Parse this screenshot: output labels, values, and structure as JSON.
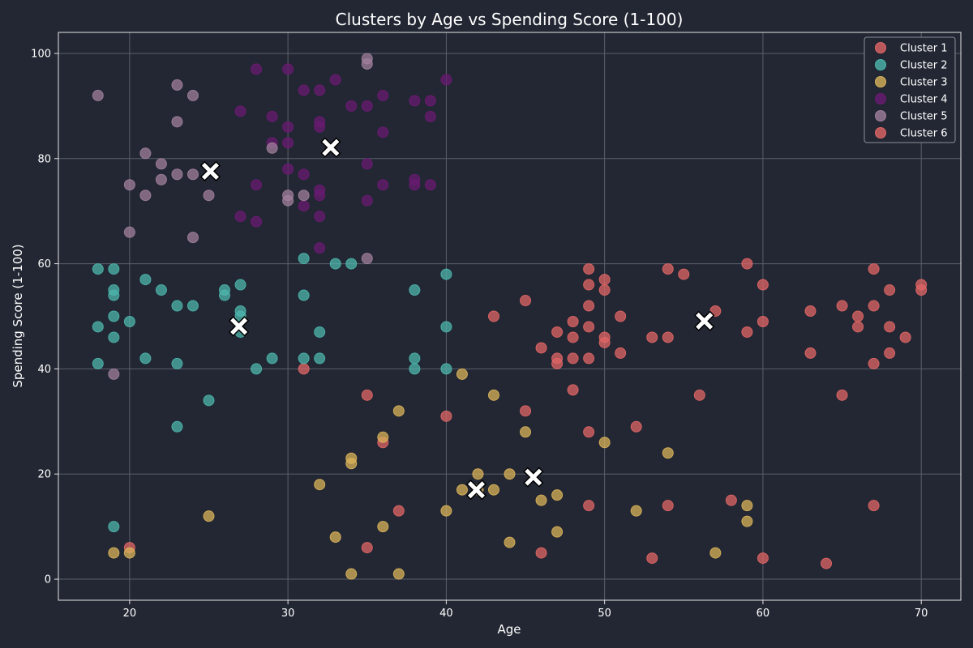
{
  "chart_data": {
    "type": "scatter",
    "title": "Clusters by Age vs Spending Score (1-100)",
    "xlabel": "Age",
    "ylabel": "Spending Score (1-100)",
    "xlim": [
      15.5,
      72.5
    ],
    "ylim": [
      -4,
      104
    ],
    "xticks": [
      20,
      30,
      40,
      50,
      60,
      70
    ],
    "yticks": [
      0,
      20,
      40,
      60,
      80,
      100
    ],
    "grid": true,
    "legend_position": "top-right",
    "series": [
      {
        "name": "Cluster 1",
        "color": "#e06666",
        "points": [
          [
            43,
            50
          ],
          [
            45,
            53
          ],
          [
            45,
            32
          ],
          [
            46,
            44
          ],
          [
            47,
            47
          ],
          [
            47,
            42
          ],
          [
            47,
            41
          ],
          [
            48,
            49
          ],
          [
            48,
            46
          ],
          [
            48,
            42
          ],
          [
            49,
            59
          ],
          [
            49,
            56
          ],
          [
            49,
            52
          ],
          [
            49,
            48
          ],
          [
            49,
            42
          ],
          [
            49,
            28
          ],
          [
            50,
            57
          ],
          [
            50,
            55
          ],
          [
            50,
            46
          ],
          [
            50,
            45
          ],
          [
            51,
            50
          ],
          [
            51,
            43
          ],
          [
            52,
            29
          ],
          [
            53,
            46
          ],
          [
            54,
            59
          ],
          [
            54,
            46
          ],
          [
            55,
            58
          ],
          [
            56,
            35
          ],
          [
            57,
            51
          ],
          [
            59,
            60
          ],
          [
            59,
            47
          ],
          [
            60,
            56
          ],
          [
            60,
            49
          ],
          [
            63,
            51
          ],
          [
            63,
            43
          ],
          [
            65,
            52
          ],
          [
            65,
            35
          ],
          [
            66,
            50
          ],
          [
            66,
            48
          ],
          [
            67,
            59
          ],
          [
            67,
            52
          ],
          [
            67,
            41
          ],
          [
            68,
            55
          ],
          [
            68,
            48
          ],
          [
            68,
            43
          ],
          [
            69,
            46
          ],
          [
            70,
            56
          ],
          [
            70,
            55
          ],
          [
            31,
            40
          ],
          [
            40,
            31
          ],
          [
            36,
            26
          ],
          [
            35,
            35
          ],
          [
            48,
            36
          ],
          [
            37,
            13
          ],
          [
            35,
            6
          ],
          [
            20,
            6
          ],
          [
            46,
            5
          ],
          [
            49,
            14
          ],
          [
            53,
            4
          ],
          [
            54,
            14
          ],
          [
            58,
            15
          ],
          [
            60,
            4
          ],
          [
            64,
            3
          ],
          [
            67,
            14
          ]
        ]
      },
      {
        "name": "Cluster 2",
        "color": "#4db6ac",
        "points": [
          [
            18,
            59
          ],
          [
            19,
            59
          ],
          [
            18,
            48
          ],
          [
            18,
            41
          ],
          [
            19,
            55
          ],
          [
            19,
            54
          ],
          [
            19,
            50
          ],
          [
            19,
            46
          ],
          [
            19,
            10
          ],
          [
            20,
            49
          ],
          [
            21,
            57
          ],
          [
            21,
            42
          ],
          [
            22,
            55
          ],
          [
            23,
            52
          ],
          [
            23,
            41
          ],
          [
            23,
            29
          ],
          [
            24,
            52
          ],
          [
            25,
            34
          ],
          [
            26,
            55
          ],
          [
            26,
            54
          ],
          [
            27,
            56
          ],
          [
            27,
            51
          ],
          [
            27,
            50
          ],
          [
            27,
            47
          ],
          [
            28,
            40
          ],
          [
            29,
            42
          ],
          [
            31,
            61
          ],
          [
            31,
            54
          ],
          [
            31,
            42
          ],
          [
            32,
            47
          ],
          [
            32,
            42
          ],
          [
            33,
            60
          ],
          [
            34,
            60
          ],
          [
            38,
            55
          ],
          [
            38,
            42
          ],
          [
            38,
            40
          ],
          [
            40,
            58
          ],
          [
            40,
            48
          ],
          [
            40,
            40
          ]
        ]
      },
      {
        "name": "Cluster 3",
        "color": "#d9b35a",
        "points": [
          [
            19,
            5
          ],
          [
            20,
            5
          ],
          [
            25,
            12
          ],
          [
            32,
            18
          ],
          [
            33,
            8
          ],
          [
            34,
            23
          ],
          [
            34,
            22
          ],
          [
            34,
            1
          ],
          [
            36,
            27
          ],
          [
            36,
            10
          ],
          [
            37,
            32
          ],
          [
            37,
            1
          ],
          [
            40,
            13
          ],
          [
            41,
            39
          ],
          [
            41,
            17
          ],
          [
            42,
            20
          ],
          [
            42,
            17
          ],
          [
            43,
            35
          ],
          [
            43,
            17
          ],
          [
            44,
            20
          ],
          [
            44,
            7
          ],
          [
            45,
            28
          ],
          [
            46,
            15
          ],
          [
            47,
            16
          ],
          [
            47,
            9
          ],
          [
            50,
            26
          ],
          [
            52,
            13
          ],
          [
            54,
            24
          ],
          [
            57,
            5
          ],
          [
            59,
            14
          ],
          [
            59,
            11
          ]
        ]
      },
      {
        "name": "Cluster 4",
        "color": "#6a1b72",
        "points": [
          [
            27,
            89
          ],
          [
            27,
            69
          ],
          [
            28,
            97
          ],
          [
            28,
            75
          ],
          [
            28,
            68
          ],
          [
            29,
            88
          ],
          [
            29,
            83
          ],
          [
            30,
            97
          ],
          [
            30,
            86
          ],
          [
            30,
            83
          ],
          [
            30,
            78
          ],
          [
            31,
            93
          ],
          [
            31,
            77
          ],
          [
            31,
            71
          ],
          [
            32,
            93
          ],
          [
            32,
            87
          ],
          [
            32,
            86
          ],
          [
            32,
            74
          ],
          [
            32,
            73
          ],
          [
            32,
            69
          ],
          [
            32,
            63
          ],
          [
            33,
            95
          ],
          [
            34,
            90
          ],
          [
            35,
            90
          ],
          [
            35,
            79
          ],
          [
            35,
            72
          ],
          [
            36,
            92
          ],
          [
            36,
            85
          ],
          [
            36,
            75
          ],
          [
            38,
            91
          ],
          [
            38,
            76
          ],
          [
            38,
            75
          ],
          [
            39,
            91
          ],
          [
            39,
            88
          ],
          [
            39,
            75
          ],
          [
            40,
            95
          ]
        ]
      },
      {
        "name": "Cluster 5",
        "color": "#a07f9c",
        "points": [
          [
            18,
            92
          ],
          [
            19,
            39
          ],
          [
            20,
            75
          ],
          [
            20,
            66
          ],
          [
            21,
            81
          ],
          [
            21,
            73
          ],
          [
            22,
            79
          ],
          [
            22,
            76
          ],
          [
            23,
            94
          ],
          [
            23,
            87
          ],
          [
            23,
            77
          ],
          [
            24,
            92
          ],
          [
            24,
            77
          ],
          [
            24,
            65
          ],
          [
            25,
            73
          ],
          [
            29,
            82
          ],
          [
            30,
            73
          ],
          [
            30,
            72
          ],
          [
            31,
            73
          ],
          [
            35,
            99
          ],
          [
            35,
            98
          ],
          [
            35,
            61
          ]
        ]
      },
      {
        "name": "Cluster 6",
        "color": "#e06666",
        "points": []
      }
    ],
    "centroids": [
      [
        25.1,
        77.6
      ],
      [
        26.9,
        48.1
      ],
      [
        32.7,
        82.1
      ],
      [
        41.9,
        17.0
      ],
      [
        45.5,
        19.4
      ],
      [
        56.3,
        49.1
      ]
    ]
  }
}
